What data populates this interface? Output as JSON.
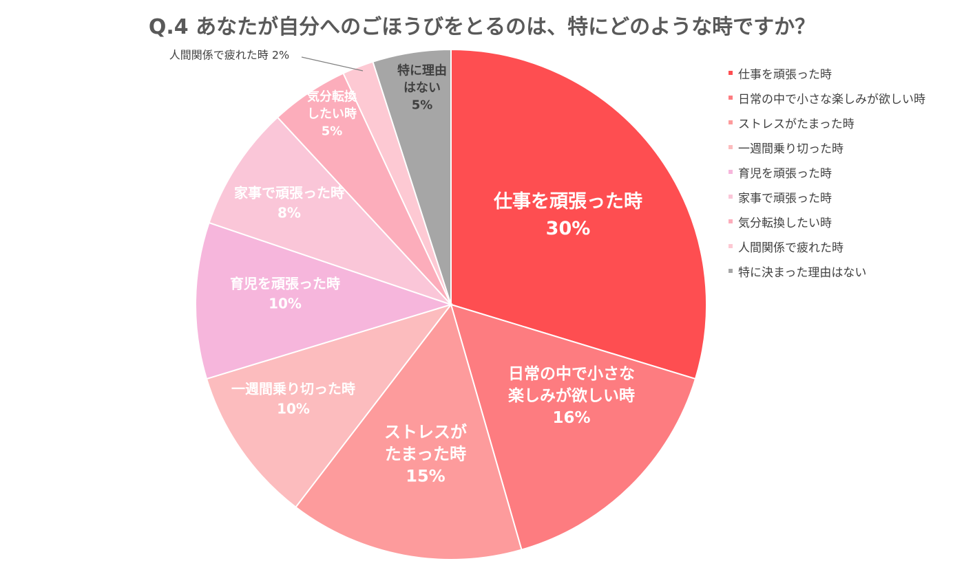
{
  "title": "Q.4 あなたが自分へのごほうびをとるのは、特にどのような時ですか？",
  "chart_data": {
    "type": "pie",
    "title": "Q.4 あなたが自分へのごほうびをとるのは、特にどのような時ですか？",
    "legend_position": "right",
    "slices": [
      {
        "name": "仕事を頑張った時",
        "value": 30,
        "color": "#fe4e51",
        "label_lines": [
          "仕事を頑張った時",
          "30%"
        ],
        "label_color": "#ffffff"
      },
      {
        "name": "日常の中で小さな楽しみが欲しい時",
        "value": 16,
        "color": "#fd7c80",
        "label_lines": [
          "日常の中で小さな",
          "楽しみが欲しい時",
          "16%"
        ],
        "label_color": "#ffffff"
      },
      {
        "name": "ストレスがたまった時",
        "value": 15,
        "color": "#fd9b9c",
        "label_lines": [
          "ストレスが",
          "たまった時",
          "15%"
        ],
        "label_color": "#ffffff"
      },
      {
        "name": "一週間乗り切った時",
        "value": 10,
        "color": "#fcbcbe",
        "label_lines": [
          "一週間乗り切った時",
          "10%"
        ],
        "label_color": "#ffffff"
      },
      {
        "name": "育児を頑張った時",
        "value": 10,
        "color": "#f6b6dc",
        "label_lines": [
          "育児を頑張った時",
          "10%"
        ],
        "label_color": "#ffffff"
      },
      {
        "name": "家事で頑張った時",
        "value": 8,
        "color": "#fac6d8",
        "label_lines": [
          "家事で頑張った時",
          "8%"
        ],
        "label_color": "#ffffff"
      },
      {
        "name": "気分転換したい時",
        "value": 5,
        "color": "#fcadbb",
        "label_lines": [
          "気分転換",
          "したい時",
          "5%"
        ],
        "label_color": "#ffffff"
      },
      {
        "name": "人間関係で疲れた時",
        "value": 2,
        "color": "#fdc9d3",
        "label_lines": [
          "人間関係で疲れた時  2%"
        ],
        "label_color": "#404040",
        "outside": true
      },
      {
        "name": "特に決まった理由はない",
        "value": 5,
        "color": "#a6a6a6",
        "label_lines": [
          "特に理由",
          "はない",
          "5%"
        ],
        "label_color": "#404040"
      }
    ]
  }
}
